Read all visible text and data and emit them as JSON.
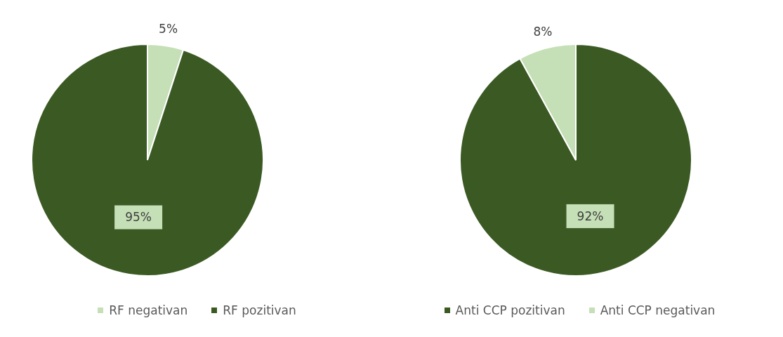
{
  "chart_data": [
    {
      "type": "pie",
      "categories": [
        "RF negativan",
        "RF pozitivan"
      ],
      "values": [
        5,
        95
      ],
      "colors": [
        "#c5dfb6",
        "#3b5a23"
      ],
      "value_labels": [
        "5%",
        "95%"
      ],
      "legend": "bottom"
    },
    {
      "type": "pie",
      "categories": [
        "Anti CCP pozitivan",
        "Anti CCP negativan"
      ],
      "values": [
        92,
        8
      ],
      "colors": [
        "#3b5a23",
        "#c5dfb6"
      ],
      "value_labels": [
        "92%",
        "8%"
      ],
      "legend": "bottom"
    }
  ]
}
